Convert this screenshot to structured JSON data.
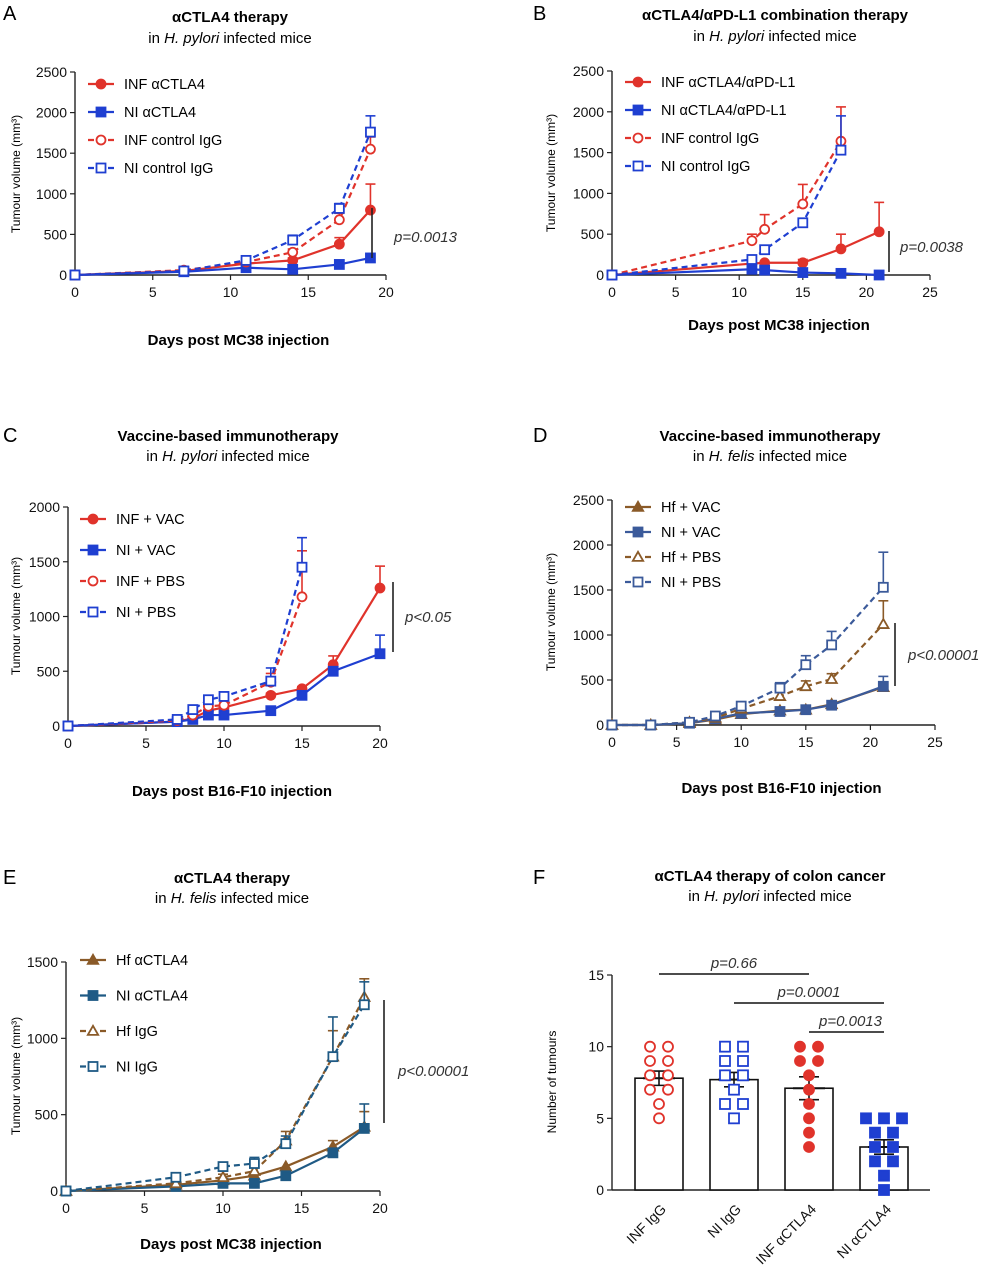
{
  "colors": {
    "red": "#e0332b",
    "blue": "#1f3fd1",
    "hfbrown": "#8a5a28",
    "niteal": "#1f5a85",
    "d_ni": "#3b5a9a",
    "dark": "#444444"
  },
  "chart_data": [
    {
      "panel": "A",
      "type": "line",
      "title": "αCTLA4 therapy",
      "subtitle": [
        "in ",
        "H. pylori",
        " infected mice"
      ],
      "xlabel": "Days post MC38 injection",
      "ylabel": "Tumour volume (mm³)",
      "xlim": [
        0,
        20
      ],
      "ylim": [
        0,
        2500
      ],
      "xticks": [
        0,
        5,
        10,
        15,
        20
      ],
      "yticks": [
        0,
        500,
        1000,
        1500,
        2000,
        2500
      ],
      "pvalue": "p=0.0013",
      "legend_position": "top-left",
      "series": [
        {
          "name": "INF αCTLA4",
          "color": "red",
          "marker": "circle",
          "filled": true,
          "dashed": false,
          "x": [
            0,
            7,
            11,
            14,
            17,
            19
          ],
          "y": [
            0,
            50,
            140,
            180,
            380,
            800
          ],
          "err": [
            0,
            0,
            20,
            30,
            80,
            320
          ]
        },
        {
          "name": "NI αCTLA4",
          "color": "blue",
          "marker": "square",
          "filled": true,
          "dashed": false,
          "x": [
            0,
            7,
            11,
            14,
            17,
            19
          ],
          "y": [
            0,
            40,
            90,
            70,
            130,
            210
          ],
          "err": [
            0,
            0,
            0,
            0,
            20,
            30
          ]
        },
        {
          "name": "INF control IgG",
          "color": "red",
          "marker": "circle",
          "filled": false,
          "dashed": true,
          "x": [
            0,
            7,
            11,
            14,
            17,
            19
          ],
          "y": [
            0,
            60,
            160,
            280,
            680,
            1550
          ],
          "err": [
            0,
            0,
            20,
            40,
            80,
            150
          ]
        },
        {
          "name": "NI control IgG",
          "color": "blue",
          "marker": "square",
          "filled": false,
          "dashed": true,
          "x": [
            0,
            7,
            11,
            14,
            17,
            19
          ],
          "y": [
            0,
            50,
            180,
            430,
            820,
            1760
          ],
          "err": [
            0,
            0,
            20,
            60,
            60,
            200
          ]
        }
      ]
    },
    {
      "panel": "B",
      "type": "line",
      "title": "αCTLA4/αPD-L1 combination therapy",
      "subtitle": [
        "in ",
        "H. pylori",
        " infected mice"
      ],
      "xlabel": "Days post MC38 injection",
      "ylabel": "Tumour volume (mm³)",
      "xlim": [
        0,
        25
      ],
      "ylim": [
        0,
        2500
      ],
      "xticks": [
        0,
        5,
        10,
        15,
        20,
        25
      ],
      "yticks": [
        0,
        500,
        1000,
        1500,
        2000,
        2500
      ],
      "pvalue": "p=0.0038",
      "legend_position": "top-left",
      "series": [
        {
          "name": "INF  αCTLA4/αPD-L1",
          "color": "red",
          "marker": "circle",
          "filled": true,
          "dashed": false,
          "x": [
            0,
            11,
            12,
            15,
            18,
            21
          ],
          "y": [
            0,
            140,
            150,
            150,
            320,
            530
          ],
          "err": [
            0,
            0,
            0,
            40,
            180,
            360
          ]
        },
        {
          "name": "NI αCTLA4/αPD-L1",
          "color": "blue",
          "marker": "square",
          "filled": true,
          "dashed": false,
          "x": [
            0,
            11,
            12,
            15,
            18,
            21
          ],
          "y": [
            0,
            70,
            60,
            30,
            20,
            0
          ],
          "err": [
            0,
            0,
            0,
            0,
            0,
            0
          ]
        },
        {
          "name": "INF control IgG",
          "color": "red",
          "marker": "circle",
          "filled": false,
          "dashed": true,
          "x": [
            0,
            11,
            12,
            15,
            18
          ],
          "y": [
            0,
            420,
            560,
            870,
            1640
          ],
          "err": [
            0,
            80,
            180,
            240,
            420
          ]
        },
        {
          "name": "NI control IgG",
          "color": "blue",
          "marker": "square",
          "filled": false,
          "dashed": true,
          "x": [
            0,
            11,
            12,
            15,
            18
          ],
          "y": [
            0,
            190,
            310,
            640,
            1530
          ],
          "err": [
            0,
            0,
            0,
            0,
            420
          ]
        }
      ]
    },
    {
      "panel": "C",
      "type": "line",
      "title": "Vaccine-based immunotherapy",
      "subtitle": [
        "in ",
        "H. pylori",
        " infected mice"
      ],
      "xlabel": "Days post B16-F10 injection",
      "ylabel": "Tumour volume (mm³)",
      "xlim": [
        0,
        20
      ],
      "ylim": [
        0,
        2000
      ],
      "xticks": [
        0,
        5,
        10,
        15,
        20
      ],
      "yticks": [
        0,
        500,
        1000,
        1500,
        2000
      ],
      "pvalue": "p<0.05",
      "legend_position": "top-left",
      "series": [
        {
          "name": "INF + VAC",
          "color": "red",
          "marker": "circle",
          "filled": true,
          "dashed": false,
          "x": [
            0,
            7,
            8,
            9,
            10,
            13,
            15,
            17,
            20
          ],
          "y": [
            0,
            40,
            70,
            140,
            170,
            280,
            340,
            560,
            1260
          ],
          "err": [
            0,
            0,
            0,
            0,
            0,
            20,
            20,
            80,
            200
          ]
        },
        {
          "name": "NI + VAC",
          "color": "blue",
          "marker": "square",
          "filled": true,
          "dashed": false,
          "x": [
            0,
            7,
            8,
            9,
            10,
            13,
            15,
            17,
            20
          ],
          "y": [
            0,
            40,
            60,
            100,
            100,
            140,
            280,
            500,
            660
          ],
          "err": [
            0,
            0,
            0,
            0,
            0,
            0,
            20,
            40,
            170
          ]
        },
        {
          "name": "INF + PBS",
          "color": "red",
          "marker": "circle",
          "filled": false,
          "dashed": true,
          "x": [
            0,
            7,
            8,
            9,
            10,
            13,
            15
          ],
          "y": [
            0,
            50,
            100,
            180,
            190,
            400,
            1180
          ],
          "err": [
            0,
            0,
            0,
            20,
            20,
            80,
            420
          ]
        },
        {
          "name": "NI + PBS",
          "color": "blue",
          "marker": "square",
          "filled": false,
          "dashed": true,
          "x": [
            0,
            7,
            8,
            9,
            10,
            13,
            15
          ],
          "y": [
            0,
            60,
            150,
            240,
            270,
            410,
            1450
          ],
          "err": [
            0,
            0,
            0,
            30,
            40,
            120,
            270
          ]
        }
      ]
    },
    {
      "panel": "D",
      "type": "line",
      "title": "Vaccine-based immunotherapy",
      "subtitle": [
        "in ",
        "H. felis",
        " infected mice"
      ],
      "xlabel": "Days post B16-F10 injection",
      "ylabel": "Tumour volume (mm³)",
      "xlim": [
        0,
        25
      ],
      "ylim": [
        0,
        2500
      ],
      "xticks": [
        0,
        5,
        10,
        15,
        20,
        25
      ],
      "yticks": [
        0,
        500,
        1000,
        1500,
        2000,
        2500
      ],
      "pvalue": "p<0.00001",
      "legend_position": "top-left",
      "series": [
        {
          "name": "Hf + VAC",
          "color": "hfbrown",
          "marker": "triangle",
          "filled": true,
          "dashed": false,
          "x": [
            0,
            3,
            6,
            8,
            10,
            13,
            15,
            17,
            21
          ],
          "y": [
            0,
            0,
            20,
            60,
            120,
            160,
            170,
            230,
            420
          ],
          "err": [
            0,
            0,
            0,
            0,
            0,
            0,
            20,
            20,
            40
          ]
        },
        {
          "name": "NI + VAC",
          "color": "d_ni",
          "marker": "square",
          "filled": true,
          "dashed": false,
          "x": [
            0,
            3,
            6,
            8,
            10,
            13,
            15,
            17,
            21
          ],
          "y": [
            0,
            0,
            20,
            70,
            130,
            150,
            170,
            220,
            430
          ],
          "err": [
            0,
            0,
            0,
            0,
            0,
            0,
            0,
            20,
            110
          ]
        },
        {
          "name": "Hf + PBS",
          "color": "hfbrown",
          "marker": "triangle",
          "filled": false,
          "dashed": true,
          "x": [
            0,
            3,
            6,
            8,
            10,
            13,
            15,
            17,
            21
          ],
          "y": [
            0,
            0,
            30,
            80,
            180,
            320,
            430,
            510,
            1120
          ],
          "err": [
            0,
            0,
            0,
            0,
            40,
            60,
            60,
            60,
            260
          ]
        },
        {
          "name": "NI + PBS",
          "color": "d_ni",
          "marker": "square",
          "filled": false,
          "dashed": true,
          "x": [
            0,
            3,
            6,
            8,
            10,
            13,
            15,
            17,
            21
          ],
          "y": [
            0,
            0,
            30,
            100,
            210,
            410,
            670,
            890,
            1530
          ],
          "err": [
            0,
            0,
            0,
            0,
            40,
            60,
            100,
            150,
            390
          ]
        }
      ]
    },
    {
      "panel": "E",
      "type": "line",
      "title": "αCTLA4 therapy",
      "subtitle": [
        "in ",
        "H. felis",
        " infected mice"
      ],
      "xlabel": "Days post MC38 injection",
      "ylabel": "Tumour volume (mm³)",
      "xlim": [
        0,
        20
      ],
      "ylim": [
        0,
        1500
      ],
      "xticks": [
        0,
        5,
        10,
        15,
        20
      ],
      "yticks": [
        0,
        500,
        1000,
        1500
      ],
      "pvalue": "p<0.00001",
      "legend_position": "top-left",
      "series": [
        {
          "name": "Hf αCTLA4",
          "color": "hfbrown",
          "marker": "triangle",
          "filled": true,
          "dashed": false,
          "x": [
            0,
            7,
            10,
            12,
            14,
            17,
            19
          ],
          "y": [
            0,
            40,
            70,
            100,
            160,
            290,
            420
          ],
          "err": [
            0,
            0,
            0,
            0,
            0,
            40,
            100
          ]
        },
        {
          "name": "NI αCTLA4",
          "color": "niteal",
          "marker": "square",
          "filled": true,
          "dashed": false,
          "x": [
            0,
            7,
            10,
            12,
            14,
            17,
            19
          ],
          "y": [
            0,
            30,
            50,
            50,
            100,
            250,
            410
          ],
          "err": [
            0,
            0,
            0,
            0,
            0,
            30,
            160
          ]
        },
        {
          "name": "Hf IgG",
          "color": "hfbrown",
          "marker": "triangle",
          "filled": false,
          "dashed": true,
          "x": [
            0,
            7,
            10,
            12,
            14,
            17,
            19
          ],
          "y": [
            0,
            50,
            90,
            130,
            330,
            880,
            1270
          ],
          "err": [
            0,
            0,
            20,
            30,
            60,
            170,
            120
          ]
        },
        {
          "name": "NI IgG",
          "color": "niteal",
          "marker": "square",
          "filled": false,
          "dashed": true,
          "x": [
            0,
            7,
            10,
            12,
            14,
            17,
            19
          ],
          "y": [
            0,
            90,
            160,
            180,
            310,
            880,
            1220
          ],
          "err": [
            0,
            0,
            20,
            40,
            50,
            260,
            150
          ]
        }
      ]
    },
    {
      "panel": "F",
      "type": "bar",
      "title": "αCTLA4 therapy of colon cancer",
      "subtitle": [
        "in ",
        "H. pylori",
        " infected mice"
      ],
      "xlabel": "",
      "ylabel": "Number of tumours",
      "ylim": [
        0,
        15
      ],
      "yticks": [
        0,
        5,
        10,
        15
      ],
      "categories": [
        "INF IgG",
        "NI IgG",
        "INF  αCTLA4",
        "NI  αCTLA4"
      ],
      "bar_colors": [
        "red",
        "blue",
        "red",
        "blue"
      ],
      "bar_markers": [
        {
          "marker": "circle",
          "filled": false
        },
        {
          "marker": "square",
          "filled": false
        },
        {
          "marker": "circle",
          "filled": true
        },
        {
          "marker": "square",
          "filled": true
        }
      ],
      "values": [
        7.8,
        7.7,
        7.1,
        3.0
      ],
      "sem": [
        0.5,
        0.5,
        0.8,
        0.5
      ],
      "points": [
        [
          10,
          10,
          9,
          9,
          8,
          8,
          7,
          7,
          6,
          5
        ],
        [
          10,
          10,
          9,
          9,
          8,
          8,
          7,
          6,
          6,
          5
        ],
        [
          10,
          10,
          9,
          9,
          8,
          7,
          6,
          5,
          4,
          3
        ],
        [
          5,
          5,
          5,
          4,
          4,
          3,
          3,
          2,
          2,
          1,
          0
        ]
      ],
      "comparisons": [
        {
          "from": 0,
          "to": 2,
          "label": "p=0.66"
        },
        {
          "from": 1,
          "to": 3,
          "label": "p=0.0001"
        },
        {
          "from": 2,
          "to": 3,
          "label": "p=0.0013"
        }
      ]
    }
  ]
}
